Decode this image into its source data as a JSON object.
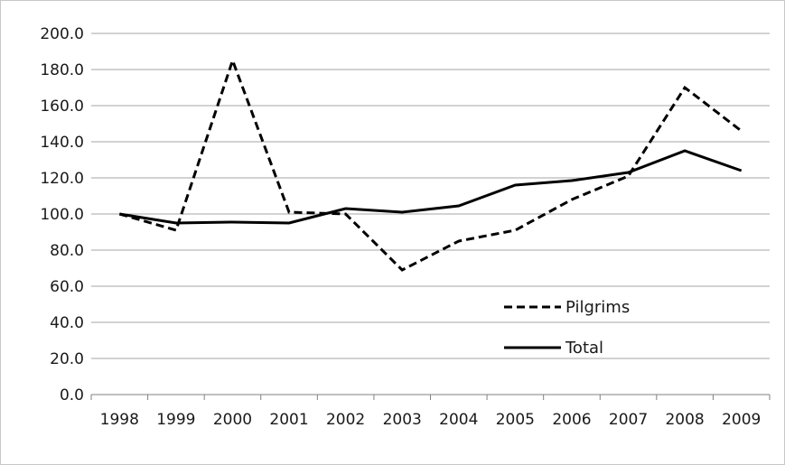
{
  "chart_data": {
    "type": "line",
    "categories": [
      "1998",
      "1999",
      "2000",
      "2001",
      "2002",
      "2003",
      "2004",
      "2005",
      "2006",
      "2007",
      "2008",
      "2009"
    ],
    "ylim": [
      0,
      200
    ],
    "y_ticks": [
      "0.0",
      "20.0",
      "40.0",
      "60.0",
      "80.0",
      "100.0",
      "120.0",
      "140.0",
      "160.0",
      "180.0",
      "200.0"
    ],
    "grid": "horizontal",
    "legend_position": "right",
    "series": [
      {
        "name": "Pilgrims",
        "style": "dashed",
        "color": "#000000",
        "values": [
          100,
          91,
          185,
          101,
          100,
          69,
          85,
          91,
          108,
          121,
          170,
          146
        ]
      },
      {
        "name": "Total",
        "style": "solid",
        "color": "#000000",
        "values": [
          100,
          95,
          95.5,
          95,
          103,
          101,
          104.5,
          116,
          118.5,
          123,
          135,
          124
        ]
      }
    ]
  }
}
